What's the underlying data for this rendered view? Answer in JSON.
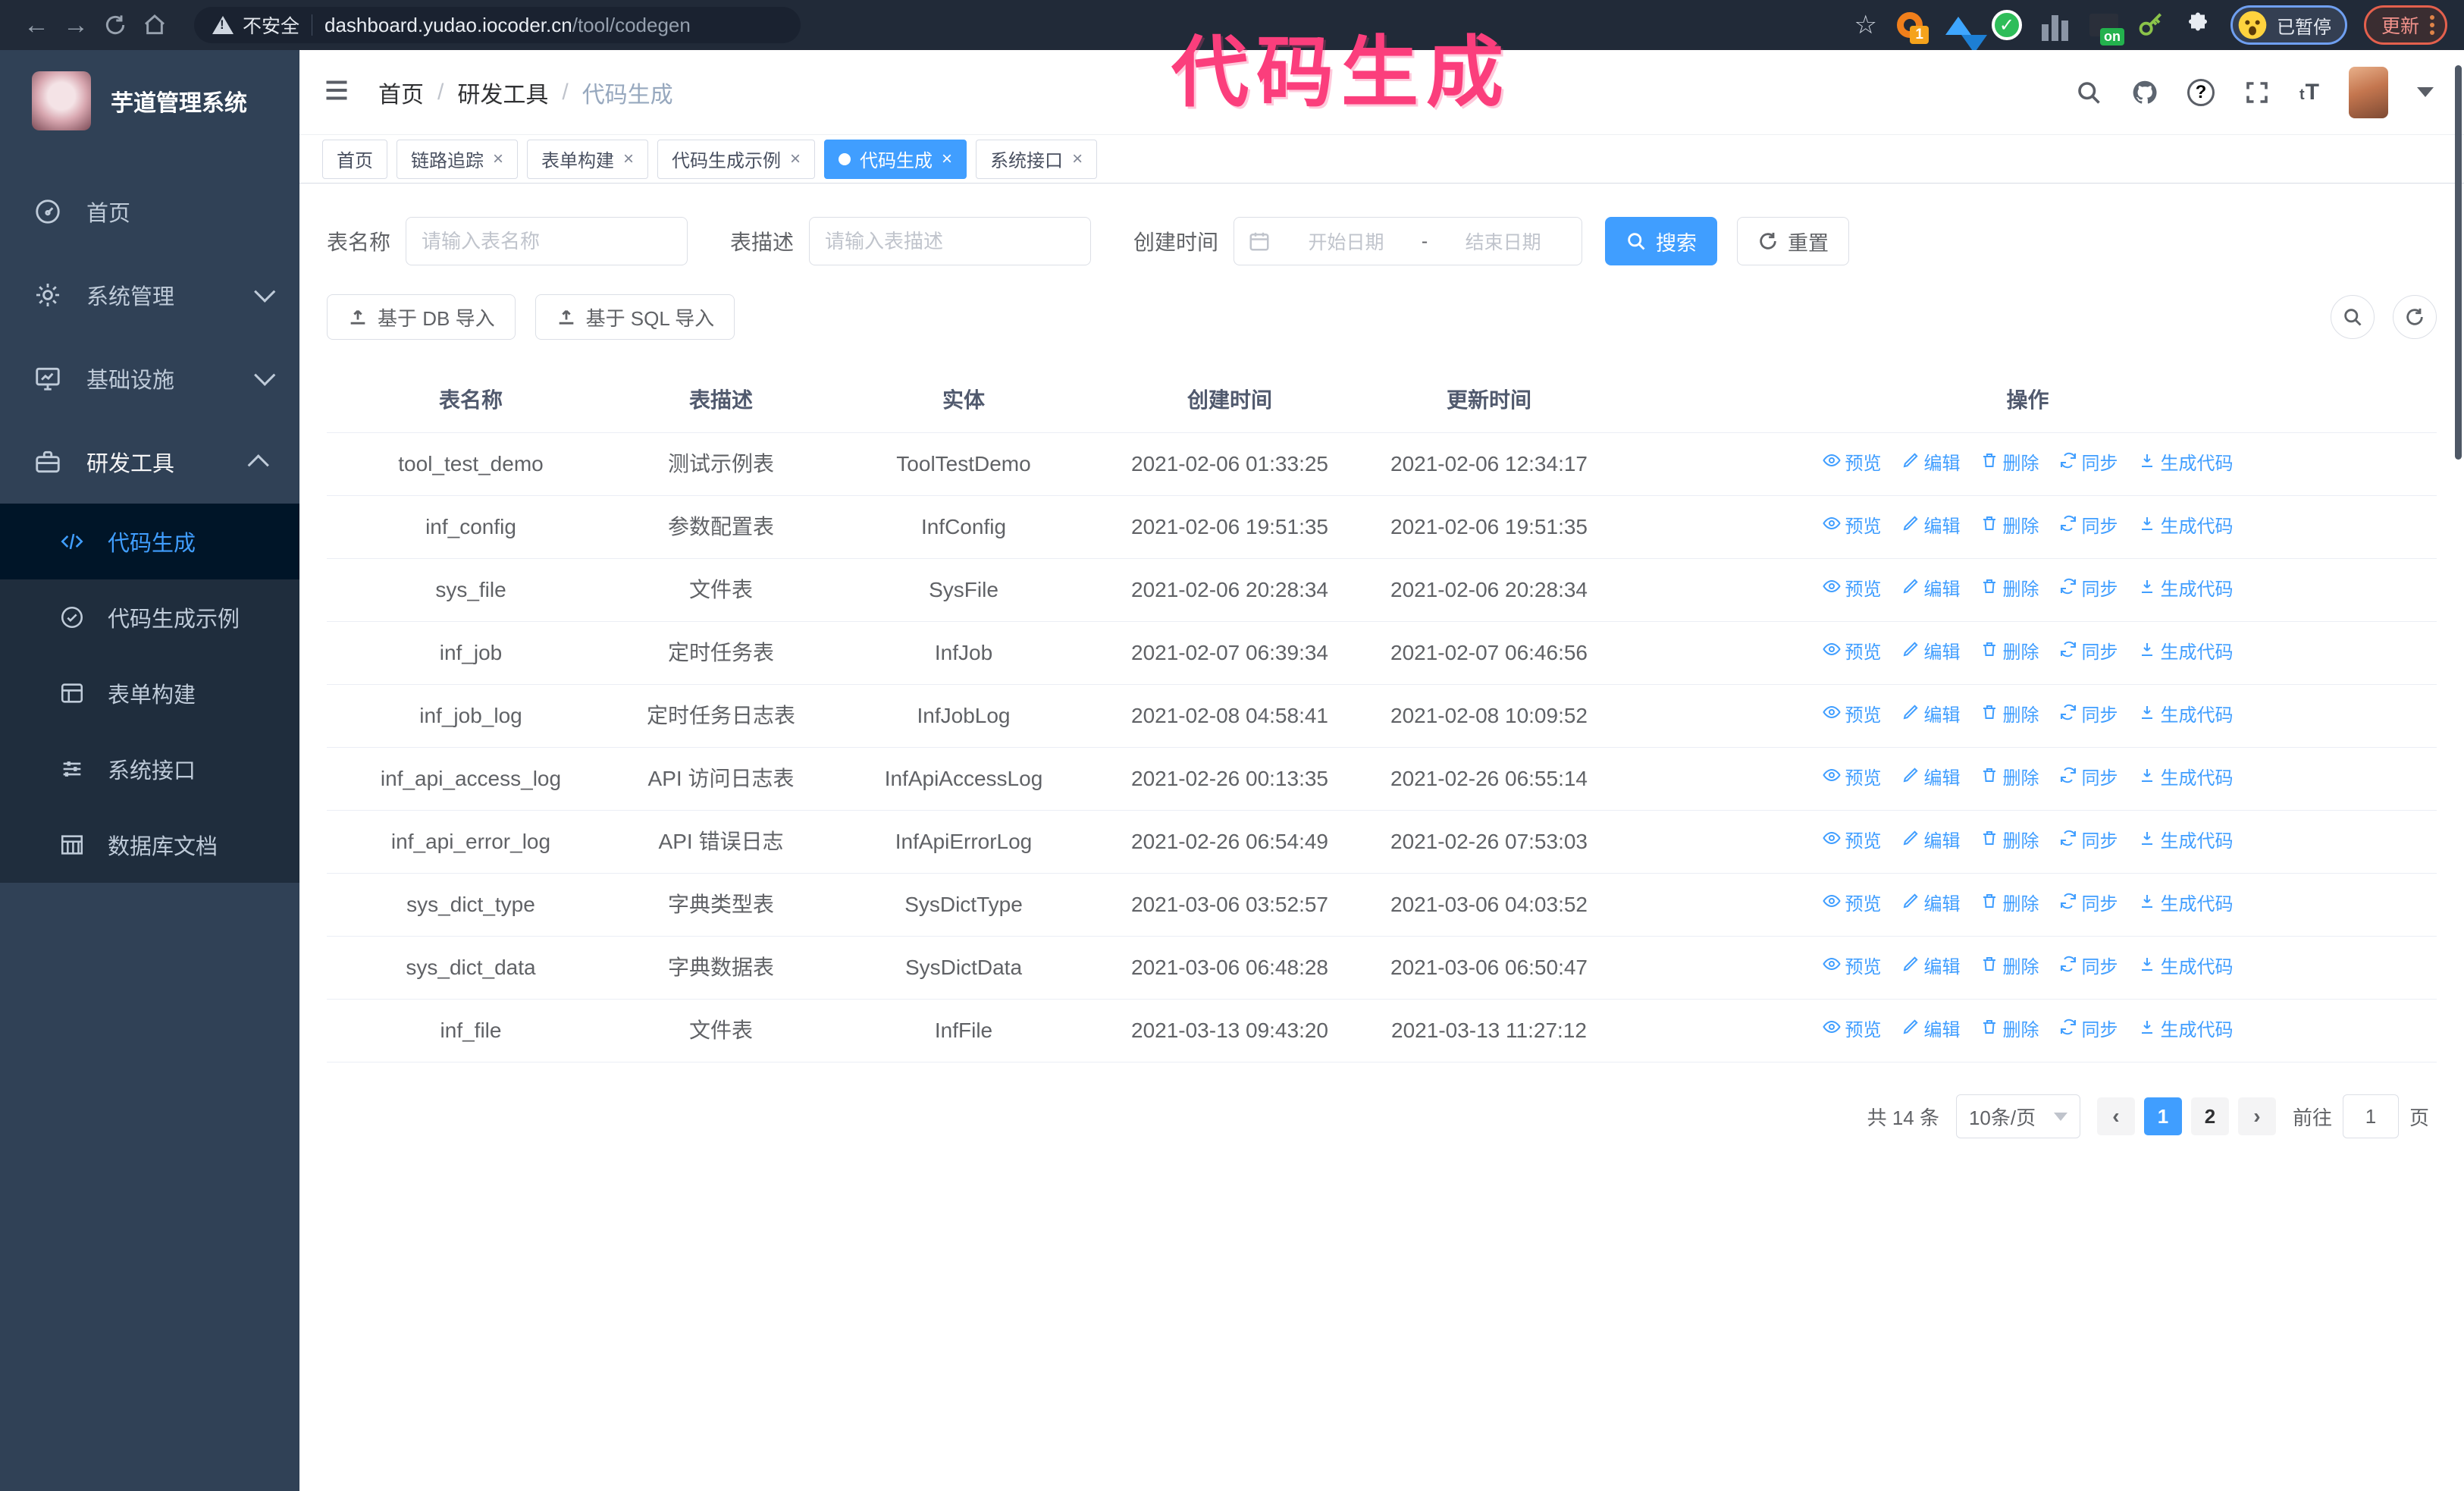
{
  "browser": {
    "security_label": "不安全",
    "url_host": "dashboard.yudao.iocoder.cn",
    "url_path": "/tool/codegen",
    "extension_badge": "1",
    "extension_on_label": "on",
    "profile_badge": "已暂停",
    "update_label": "更新"
  },
  "annotation": {
    "text": "代码生成",
    "color": "#fb3e7c"
  },
  "sidebar": {
    "app_title": "芋道管理系统",
    "items": [
      {
        "label": "首页"
      },
      {
        "label": "系统管理"
      },
      {
        "label": "基础设施"
      },
      {
        "label": "研发工具"
      }
    ],
    "submenu": [
      {
        "label": "代码生成",
        "active": true
      },
      {
        "label": "代码生成示例"
      },
      {
        "label": "表单构建"
      },
      {
        "label": "系统接口"
      },
      {
        "label": "数据库文档"
      }
    ]
  },
  "header": {
    "breadcrumb": [
      "首页",
      "研发工具",
      "代码生成"
    ]
  },
  "tabs": [
    {
      "label": "首页",
      "closable": false,
      "active": false
    },
    {
      "label": "链路追踪",
      "closable": true,
      "active": false
    },
    {
      "label": "表单构建",
      "closable": true,
      "active": false
    },
    {
      "label": "代码生成示例",
      "closable": true,
      "active": false
    },
    {
      "label": "代码生成",
      "closable": true,
      "active": true
    },
    {
      "label": "系统接口",
      "closable": true,
      "active": false
    }
  ],
  "filters": {
    "table_name_label": "表名称",
    "table_name_placeholder": "请输入表名称",
    "table_desc_label": "表描述",
    "table_desc_placeholder": "请输入表描述",
    "create_time_label": "创建时间",
    "date_start_placeholder": "开始日期",
    "date_separator": "-",
    "date_end_placeholder": "结束日期",
    "search_label": "搜索",
    "reset_label": "重置"
  },
  "toolbar": {
    "import_db_label": "基于 DB 导入",
    "import_sql_label": "基于 SQL 导入"
  },
  "table": {
    "columns": [
      "表名称",
      "表描述",
      "实体",
      "创建时间",
      "更新时间",
      "操作"
    ],
    "actions": [
      "预览",
      "编辑",
      "删除",
      "同步",
      "生成代码"
    ],
    "rows": [
      {
        "name": "tool_test_demo",
        "desc": "测试示例表",
        "entity": "ToolTestDemo",
        "created": "2021-02-06 01:33:25",
        "updated": "2021-02-06 12:34:17"
      },
      {
        "name": "inf_config",
        "desc": "参数配置表",
        "entity": "InfConfig",
        "created": "2021-02-06 19:51:35",
        "updated": "2021-02-06 19:51:35"
      },
      {
        "name": "sys_file",
        "desc": "文件表",
        "entity": "SysFile",
        "created": "2021-02-06 20:28:34",
        "updated": "2021-02-06 20:28:34"
      },
      {
        "name": "inf_job",
        "desc": "定时任务表",
        "entity": "InfJob",
        "created": "2021-02-07 06:39:34",
        "updated": "2021-02-07 06:46:56"
      },
      {
        "name": "inf_job_log",
        "desc": "定时任务日志表",
        "entity": "InfJobLog",
        "created": "2021-02-08 04:58:41",
        "updated": "2021-02-08 10:09:52"
      },
      {
        "name": "inf_api_access_log",
        "desc": "API 访问日志表",
        "entity": "InfApiAccessLog",
        "created": "2021-02-26 00:13:35",
        "updated": "2021-02-26 06:55:14"
      },
      {
        "name": "inf_api_error_log",
        "desc": "API 错误日志",
        "entity": "InfApiErrorLog",
        "created": "2021-02-26 06:54:49",
        "updated": "2021-02-26 07:53:03"
      },
      {
        "name": "sys_dict_type",
        "desc": "字典类型表",
        "entity": "SysDictType",
        "created": "2021-03-06 03:52:57",
        "updated": "2021-03-06 04:03:52"
      },
      {
        "name": "sys_dict_data",
        "desc": "字典数据表",
        "entity": "SysDictData",
        "created": "2021-03-06 06:48:28",
        "updated": "2021-03-06 06:50:47"
      },
      {
        "name": "inf_file",
        "desc": "文件表",
        "entity": "InfFile",
        "created": "2021-03-13 09:43:20",
        "updated": "2021-03-13 11:27:12"
      }
    ]
  },
  "pagination": {
    "total_label": "共 14 条",
    "page_size": "10条/页",
    "prev_label": "‹",
    "next_label": "›",
    "pages": [
      "1",
      "2"
    ],
    "active_page": "1",
    "goto_label": "前往",
    "goto_value": "1",
    "goto_suffix": "页"
  },
  "colors": {
    "primary": "#409eff",
    "annotation_pink": "#fb3e7c",
    "sidebar_bg": "#304156",
    "submenu_bg": "#1f2d3d",
    "submenu_active_bg": "#001528",
    "menu_text": "#bfcbd9",
    "browser_bar_bg": "#212a38",
    "table_border": "#ebeef5"
  }
}
